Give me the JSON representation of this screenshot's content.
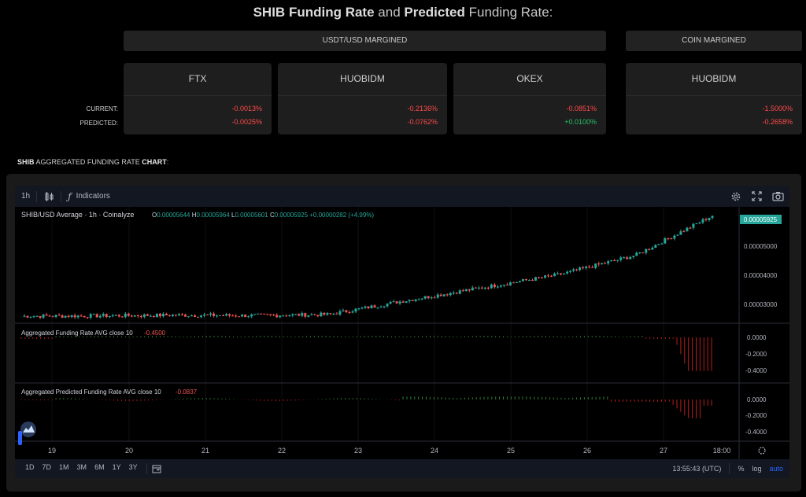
{
  "title": {
    "coin": "SHIB",
    "part1": "Funding Rate",
    "and": "and",
    "part2": "Predicted",
    "part3": "Funding Rate:"
  },
  "headers": {
    "usdt": "USDT/USD MARGINED",
    "coin": "COIN MARGINED"
  },
  "row_labels": {
    "current": "CURRENT:",
    "predicted": "PREDICTED:"
  },
  "exchanges": [
    {
      "name": "FTX",
      "current": "-0.0013%",
      "predicted": "-0.0025%"
    },
    {
      "name": "HUOBIDM",
      "current": "-0.2136%",
      "predicted": "-0.0762%"
    },
    {
      "name": "OKEX",
      "current": "-0.0851%",
      "predicted": "+0.0100%"
    },
    {
      "name": "HUOBIDM",
      "current": "-1.5000%",
      "predicted": "-0.2658%"
    }
  ],
  "section": {
    "coin": "SHIB",
    "middle": "AGGREGATED FUNDING RATE",
    "chart": "CHART",
    "colon": ":"
  },
  "toolbar": {
    "interval": "1h",
    "indicators": "Indicators",
    "icons": [
      "candles-icon",
      "function-icon",
      "settings-icon",
      "fullscreen-icon",
      "camera-icon"
    ]
  },
  "legend": {
    "symbol": "SHIB/USD Average · 1h · Coinalyze",
    "o_label": "O",
    "o": "0.00005644",
    "h_label": "H",
    "h": "0.00005964",
    "l_label": "L",
    "l": "0.00005601",
    "c_label": "C",
    "c": "0.00005925",
    "change": "+0.00000282 (+4.99%)"
  },
  "price_axis": [
    "0.00005000",
    "0.00004000",
    "0.00003000"
  ],
  "last_price": "0.00005925",
  "pane2": {
    "label": "Aggregated Funding Rate AVG close 10",
    "value": "-0.4500",
    "ticks": [
      "0.0000",
      "-0.2000",
      "-0.4000"
    ]
  },
  "pane3": {
    "label": "Aggregated Predicted Funding Rate AVG close 10",
    "value": "-0.0837",
    "ticks": [
      "0.0000",
      "-0.2000",
      "-0.4000"
    ]
  },
  "time_axis": [
    "19",
    "20",
    "21",
    "22",
    "23",
    "24",
    "25",
    "26",
    "27",
    "18:00"
  ],
  "ranges": [
    "1D",
    "7D",
    "1M",
    "3M",
    "6M",
    "1Y",
    "3Y"
  ],
  "clock": "13:55:43 (UTC)",
  "scale_opts": {
    "pct": "%",
    "log": "log",
    "auto": "auto"
  },
  "colors": {
    "up": "#26a69a",
    "down": "#ef5350",
    "bar_up": "#2e7d32",
    "bar_down": "#b71c1c",
    "accent": "#2962ff"
  },
  "chart_data": {
    "type": "candlestick",
    "price_series": {
      "name": "SHIB/USD Average",
      "x": [
        "19",
        "20",
        "21",
        "22",
        "23",
        "24",
        "25",
        "26",
        "27",
        "18:00"
      ],
      "close": [
        2.82e-05,
        2.83e-05,
        2.85e-05,
        2.84e-05,
        2.87e-05,
        3.3e-05,
        3.7e-05,
        4.1e-05,
        4.7e-05,
        5.925e-05
      ],
      "ylim": [
        2.65e-05,
        6.1e-05
      ]
    },
    "funding_rate": {
      "name": "Aggregated Funding Rate AVG close 10",
      "last": -0.45,
      "ylim": [
        -0.5,
        0.05
      ]
    },
    "predicted_funding_rate": {
      "name": "Aggregated Predicted Funding Rate AVG close 10",
      "last": -0.0837,
      "ylim": [
        -0.5,
        0.05
      ]
    }
  }
}
